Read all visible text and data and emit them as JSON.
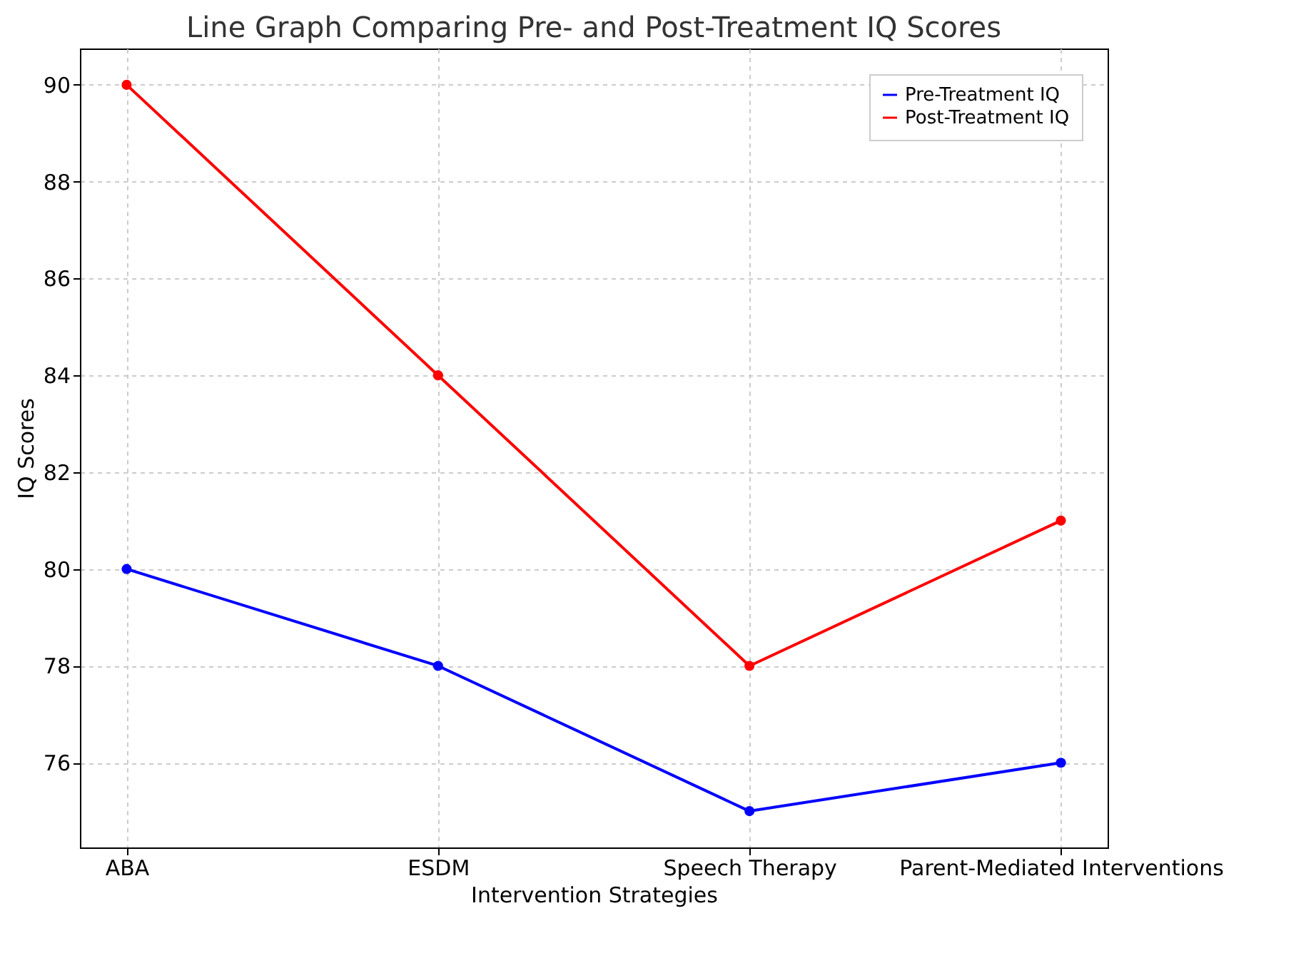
{
  "chart_data": {
    "type": "line",
    "title": "Line Graph Comparing Pre- and Post-Treatment IQ Scores",
    "xlabel": "Intervention Strategies",
    "ylabel": "IQ Scores",
    "categories": [
      "ABA",
      "ESDM",
      "Speech Therapy",
      "Parent-Mediated Interventions"
    ],
    "series": [
      {
        "name": "Pre-Treatment IQ",
        "color": "#0000ff",
        "values": [
          80,
          78,
          75,
          76
        ]
      },
      {
        "name": "Post-Treatment IQ",
        "color": "#ff0000",
        "values": [
          90,
          84,
          78,
          81
        ]
      }
    ],
    "ylim": [
      74.25,
      90.75
    ],
    "yticks": [
      76,
      78,
      80,
      82,
      84,
      86,
      88,
      90
    ],
    "grid": true,
    "legend": "top right",
    "marker": "circle",
    "line_style": "solid"
  }
}
